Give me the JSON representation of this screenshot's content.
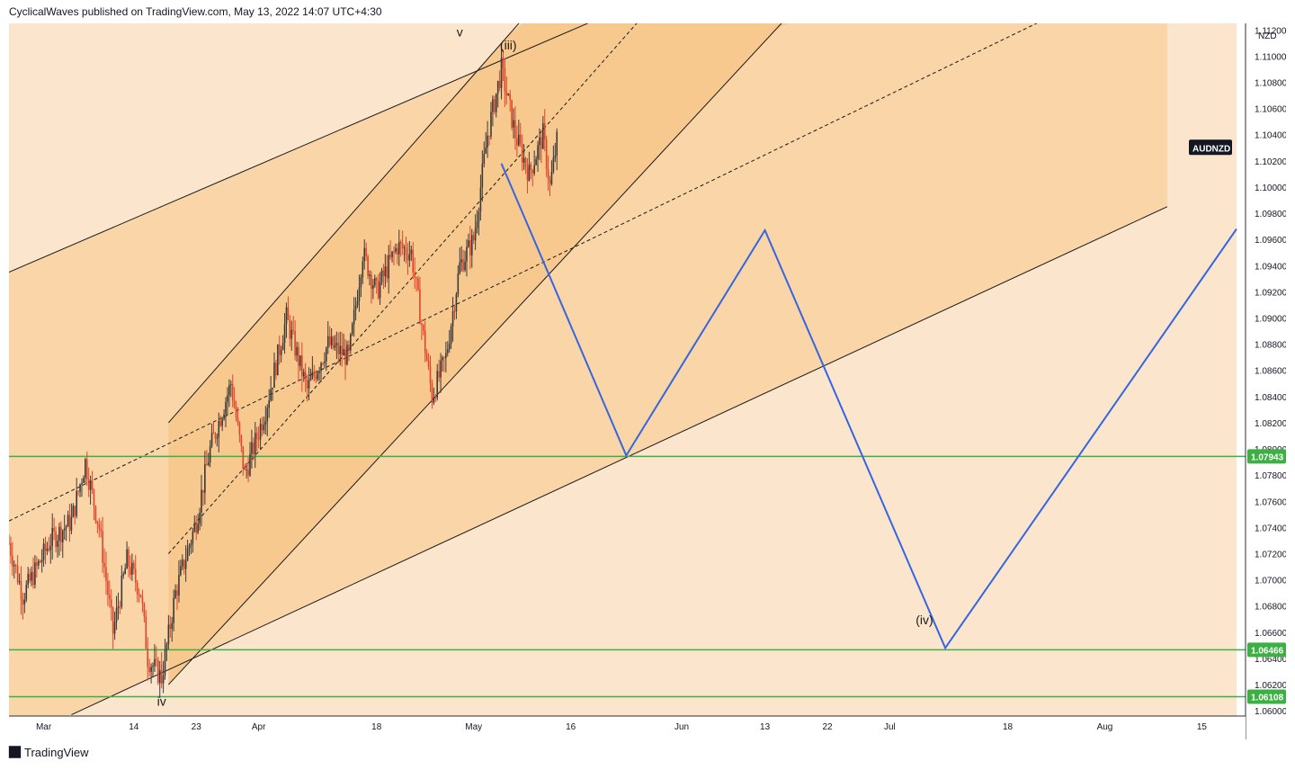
{
  "header": {
    "publisher_line": "CyclicalWaves published on TradingView.com, May 13, 2022 14:07 UTC+4:30"
  },
  "footer": {
    "logo_icon": "tradingview-logo-icon",
    "brand": "TradingView"
  },
  "chart_data": {
    "type": "candlestick",
    "symbol": "AUDNZD",
    "currency_label": "NZD",
    "y_range": [
      1.0596,
      1.1125
    ],
    "y_ticks": [
      "1.06000",
      "1.06200",
      "1.06400",
      "1.06600",
      "1.06800",
      "1.07000",
      "1.07200",
      "1.07400",
      "1.07600",
      "1.07800",
      "1.08000",
      "1.08200",
      "1.08400",
      "1.08600",
      "1.08800",
      "1.09000",
      "1.09200",
      "1.09400",
      "1.09600",
      "1.09800",
      "1.10000",
      "1.10200",
      "1.10400",
      "1.10600",
      "1.10800",
      "1.11000",
      "1.11200"
    ],
    "x_range": [
      "2022-02-24",
      "2022-08-20"
    ],
    "x_ticks": [
      {
        "label": "Mar",
        "date": "2022-03-01"
      },
      {
        "label": "14",
        "date": "2022-03-14"
      },
      {
        "label": "23",
        "date": "2022-03-23"
      },
      {
        "label": "Apr",
        "date": "2022-04-01"
      },
      {
        "label": "18",
        "date": "2022-04-18"
      },
      {
        "label": "May",
        "date": "2022-05-02"
      },
      {
        "label": "16",
        "date": "2022-05-16"
      },
      {
        "label": "Jun",
        "date": "2022-06-01"
      },
      {
        "label": "13",
        "date": "2022-06-13"
      },
      {
        "label": "22",
        "date": "2022-06-22"
      },
      {
        "label": "Jul",
        "date": "2022-07-01"
      },
      {
        "label": "18",
        "date": "2022-07-18"
      },
      {
        "label": "Aug",
        "date": "2022-08-01"
      },
      {
        "label": "15",
        "date": "2022-08-15"
      }
    ],
    "price_path": [
      {
        "date": "2022-02-24",
        "price": 1.0728
      },
      {
        "date": "2022-02-26",
        "price": 1.0688
      },
      {
        "date": "2022-03-02",
        "price": 1.073
      },
      {
        "date": "2022-03-05",
        "price": 1.0745
      },
      {
        "date": "2022-03-07",
        "price": 1.079
      },
      {
        "date": "2022-03-09",
        "price": 1.074
      },
      {
        "date": "2022-03-11",
        "price": 1.066
      },
      {
        "date": "2022-03-13",
        "price": 1.0715
      },
      {
        "date": "2022-03-15",
        "price": 1.069
      },
      {
        "date": "2022-03-16",
        "price": 1.064
      },
      {
        "date": "2022-03-18",
        "price": 1.0625
      },
      {
        "date": "2022-03-20",
        "price": 1.069
      },
      {
        "date": "2022-03-23",
        "price": 1.0745
      },
      {
        "date": "2022-03-25",
        "price": 1.08
      },
      {
        "date": "2022-03-28",
        "price": 1.085
      },
      {
        "date": "2022-03-30",
        "price": 1.078
      },
      {
        "date": "2022-04-02",
        "price": 1.083
      },
      {
        "date": "2022-04-05",
        "price": 1.09
      },
      {
        "date": "2022-04-08",
        "price": 1.0845
      },
      {
        "date": "2022-04-11",
        "price": 1.088
      },
      {
        "date": "2022-04-14",
        "price": 1.087
      },
      {
        "date": "2022-04-16",
        "price": 1.095
      },
      {
        "date": "2022-04-18",
        "price": 1.092
      },
      {
        "date": "2022-04-21",
        "price": 1.0955
      },
      {
        "date": "2022-04-23",
        "price": 1.095
      },
      {
        "date": "2022-04-26",
        "price": 1.084
      },
      {
        "date": "2022-04-28",
        "price": 1.087
      },
      {
        "date": "2022-04-30",
        "price": 1.094
      },
      {
        "date": "2022-05-02",
        "price": 1.096
      },
      {
        "date": "2022-05-04",
        "price": 1.104
      },
      {
        "date": "2022-05-06",
        "price": 1.109
      },
      {
        "date": "2022-05-08",
        "price": 1.104
      },
      {
        "date": "2022-05-10",
        "price": 1.101
      },
      {
        "date": "2022-05-12",
        "price": 1.104
      },
      {
        "date": "2022-05-13",
        "price": 1.1
      },
      {
        "date": "2022-05-14",
        "price": 1.1035
      }
    ],
    "price_low": {
      "date": "2022-03-18",
      "price": 1.062
    },
    "price_high": {
      "date": "2022-05-06",
      "price": 1.1108
    },
    "last_price_date": "2022-05-14",
    "channels": [
      {
        "name": "large",
        "top_line": [
          {
            "date": "2022-02-24",
            "price": 1.0935
          },
          {
            "date": "2022-05-25",
            "price": 1.114
          }
        ],
        "bottom_line": [
          {
            "date": "2022-03-05",
            "price": 1.0597
          },
          {
            "date": "2022-08-10",
            "price": 1.0985
          }
        ],
        "mid_line": [
          {
            "date": "2022-02-24",
            "price": 1.0745
          },
          {
            "date": "2022-07-28",
            "price": 1.114
          }
        ],
        "box_end_date": "2022-08-10",
        "box_top": 1.1125
      },
      {
        "name": "small",
        "start_date": "2022-03-19",
        "top_line": [
          {
            "date": "2022-03-19",
            "price": 1.082
          },
          {
            "date": "2022-05-11",
            "price": 1.114
          }
        ],
        "bottom_line": [
          {
            "date": "2022-03-19",
            "price": 1.062
          },
          {
            "date": "2022-06-18",
            "price": 1.114
          }
        ],
        "mid_line": [
          {
            "date": "2022-03-19",
            "price": 1.072
          },
          {
            "date": "2022-05-28",
            "price": 1.114
          }
        ]
      }
    ],
    "projection": {
      "color": "#3366e0",
      "path": [
        {
          "date": "2022-05-06",
          "price": 1.1018
        },
        {
          "date": "2022-05-24",
          "price": 1.0795
        },
        {
          "date": "2022-06-13",
          "price": 1.0967
        },
        {
          "date": "2022-07-09",
          "price": 1.0648
        },
        {
          "date": "2022-08-20",
          "price": 1.0968
        }
      ]
    },
    "horizontal_levels": [
      {
        "price": 1.07943,
        "label": "1.07943"
      },
      {
        "price": 1.06466,
        "label": "1.06466"
      },
      {
        "price": 1.06108,
        "label": "1.06108"
      }
    ],
    "wave_labels": [
      {
        "text": "v",
        "date": "2022-04-30",
        "price": 1.1115
      },
      {
        "text": "(iii)",
        "date": "2022-05-07",
        "price": 1.1105
      },
      {
        "text": "(iv)",
        "date": "2022-07-06",
        "price": 1.0666
      },
      {
        "text": "iv",
        "date": "2022-03-18",
        "price": 1.0604
      }
    ],
    "colors": {
      "bg_light": "#fce5cd",
      "band_mid": "#f9d5a8",
      "band_dark": "#f7c98f",
      "candle_up": "#3a3a3a",
      "candle_down": "#e0452b",
      "level_line": "#3cb043",
      "symbol_badge": "#131722"
    }
  }
}
